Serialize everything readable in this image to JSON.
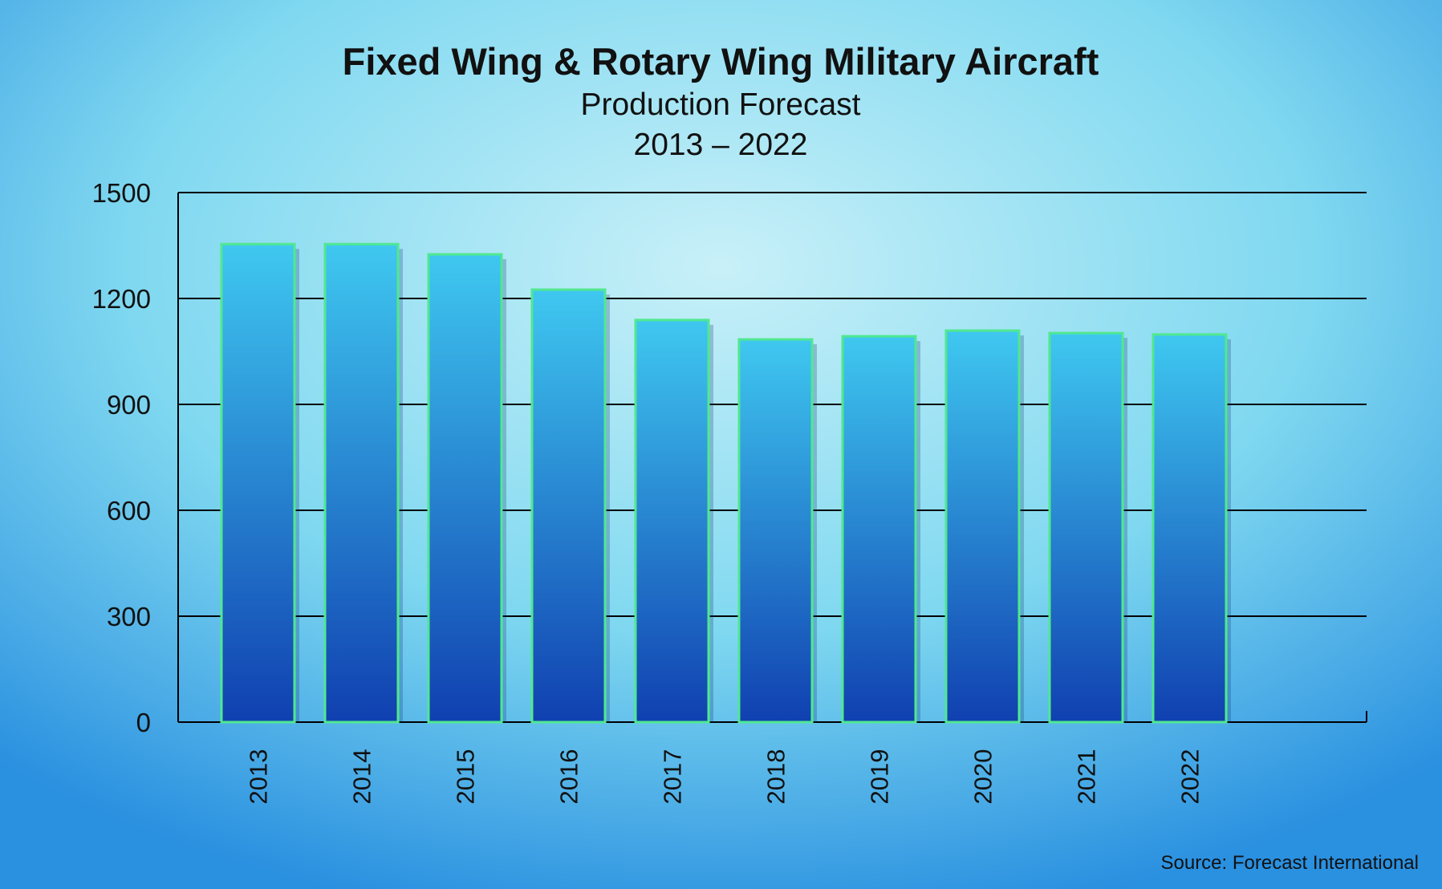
{
  "chart_data": {
    "type": "bar",
    "title": "Fixed Wing & Rotary Wing Military Aircraft",
    "subtitle": "Production Forecast",
    "subtitle2": "2013 – 2022",
    "xlabel": "",
    "ylabel": "",
    "categories": [
      "2013",
      "2014",
      "2015",
      "2016",
      "2017",
      "2018",
      "2019",
      "2020",
      "2021",
      "2022"
    ],
    "values": [
      1354,
      1354,
      1325,
      1225,
      1139,
      1084,
      1093,
      1109,
      1102,
      1098
    ],
    "ylim": [
      0,
      1500
    ],
    "yticks": [
      0,
      300,
      600,
      900,
      1200,
      1500
    ],
    "grid": true,
    "source": "Source:  Forecast International",
    "colors": {
      "bar_top": "#3fc8f0",
      "bar_bottom": "#1040b0",
      "bar_outline": "#50e890",
      "background": "#8fdcf0"
    }
  }
}
